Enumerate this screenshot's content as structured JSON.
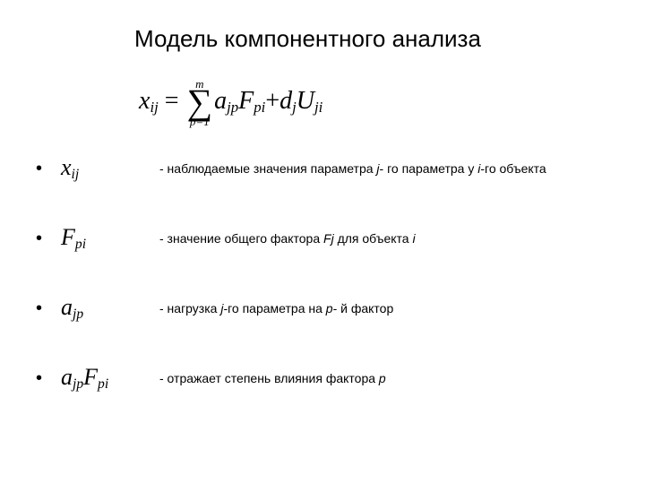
{
  "title": "Модель компонентного анализа",
  "formula": {
    "lhs_base": "x",
    "lhs_sub": "ij",
    "sum_from": "p=1",
    "sum_to": "m",
    "a_base": "a",
    "a_sub": "jp",
    "F_base": "F",
    "F_sub": "pi",
    "d_base": "d",
    "d_sub": "j",
    "U_base": "U",
    "U_sub": "ji"
  },
  "rows": [
    {
      "sym_base": "x",
      "sym_sub": "ij",
      "desc_pre": "- наблюдаемые значения параметра  ",
      "desc_it1": "j",
      "desc_mid1": "- го параметра у ",
      "desc_it2": "i",
      "desc_post": "-го объекта"
    },
    {
      "sym_base": "F",
      "sym_sub": "pi",
      "desc_pre": "- значение общего фактора ",
      "desc_it1": "Fj",
      "desc_mid1": " для объекта ",
      "desc_it2": "i",
      "desc_post": ""
    },
    {
      "sym_base": "a",
      "sym_sub": "jp",
      "desc_pre": "- нагрузка ",
      "desc_it1": "j",
      "desc_mid1": "-го параметра на ",
      "desc_it2": "p",
      "desc_post": "- й фактор"
    },
    {
      "sym_base2": "a",
      "sym_sub2": "jp",
      "sym_base": "F",
      "sym_sub": "pi",
      "desc_pre": "- отражает степень влияния фактора ",
      "desc_it1": "p",
      "desc_mid1": "",
      "desc_it2": "",
      "desc_post": ""
    }
  ],
  "colors": {
    "background": "#ffffff",
    "text": "#000000"
  },
  "fonts": {
    "title_family": "Arial",
    "title_size_pt": 20,
    "body_family": "Arial",
    "body_size_pt": 10,
    "math_family": "Times New Roman",
    "math_size_pt": 20
  }
}
